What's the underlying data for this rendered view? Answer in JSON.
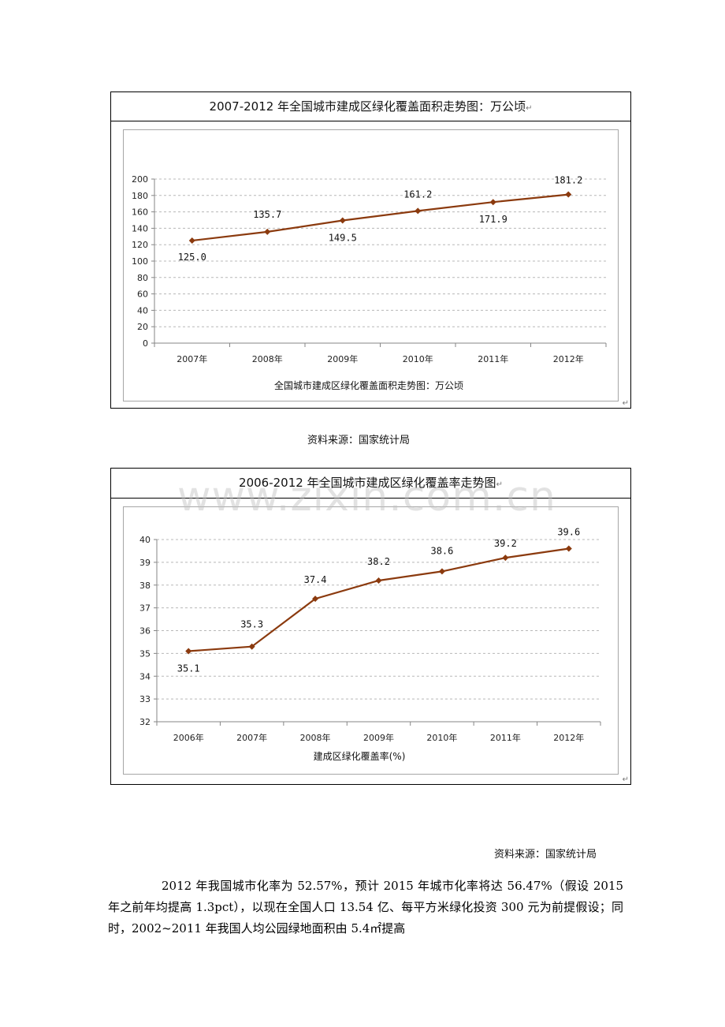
{
  "charts": [
    {
      "title": "2007-2012 年全国城市建成区绿化覆盖面积走势图：万公顷",
      "return_mark": "↵",
      "source": "资料来源：国家统计局"
    },
    {
      "title": "2006-2012 年全国城市建成区绿化覆盖率走势图",
      "return_mark": "↵",
      "source": "资料来源：国家统计局"
    }
  ],
  "watermark": "www.zixin.com.cn",
  "paragraph": "2012 年我国城市化率为 52.57%，预计 2015 年城市化率将达 56.47%（假设 2015 年之前年均提高 1.3pct），以现在全国人口 13.54 亿、每平方米绿化投资 300 元为前提假设；同时，2002~2011 年我国人均公园绿地面积由 5.4㎡提高",
  "chart_data": [
    {
      "type": "line",
      "title": "全国城市建成区绿化覆盖面积走势图：万公顷",
      "categories": [
        "2007年",
        "2008年",
        "2009年",
        "2010年",
        "2011年",
        "2012年"
      ],
      "series": [
        {
          "values": [
            125.0,
            135.7,
            149.5,
            161.2,
            171.9,
            181.2
          ]
        }
      ],
      "data_labels": [
        "125.0",
        "135.7",
        "149.5",
        "161.2",
        "171.9",
        "181.2"
      ],
      "ylim": [
        0,
        200
      ],
      "yticks": [
        0,
        20,
        40,
        60,
        80,
        100,
        120,
        140,
        160,
        180,
        200
      ],
      "grid": true,
      "color": "#8b3a0e"
    },
    {
      "type": "line",
      "title": "建成区绿化覆盖率(%)",
      "categories": [
        "2006年",
        "2007年",
        "2008年",
        "2009年",
        "2010年",
        "2011年",
        "2012年"
      ],
      "series": [
        {
          "values": [
            35.1,
            35.3,
            37.4,
            38.2,
            38.6,
            39.2,
            39.6
          ]
        }
      ],
      "data_labels": [
        "35.1",
        "35.3",
        "37.4",
        "38.2",
        "38.6",
        "39.2",
        "39.6"
      ],
      "ylim": [
        32,
        40
      ],
      "yticks": [
        32,
        33,
        34,
        35,
        36,
        37,
        38,
        39,
        40
      ],
      "grid": true,
      "color": "#8b3a0e"
    }
  ]
}
